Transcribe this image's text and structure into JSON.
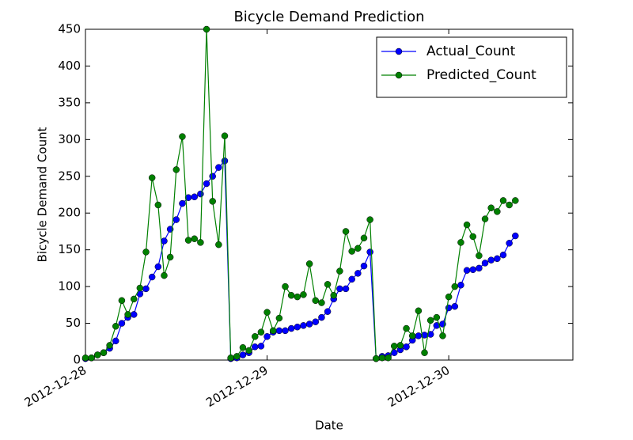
{
  "chart_data": {
    "type": "line",
    "title": "Bicycle Demand Prediction",
    "x_label": "Date",
    "y_label": "Bicycle Demand Count",
    "x": [
      0,
      1,
      2,
      3,
      4,
      5,
      6,
      7,
      8,
      9,
      10,
      11,
      12,
      13,
      14,
      15,
      16,
      17,
      18,
      19,
      20,
      21,
      22,
      23,
      24,
      25,
      26,
      27,
      28,
      29,
      30,
      31,
      32,
      33,
      34,
      35,
      36,
      37,
      38,
      39,
      40,
      41,
      42,
      43,
      44,
      45,
      46,
      47,
      48,
      49,
      50,
      51,
      52,
      53,
      54,
      55,
      56,
      57,
      58,
      59,
      60,
      61,
      62,
      63,
      64,
      65,
      66,
      67,
      68,
      69,
      70,
      71
    ],
    "series": [
      {
        "name": "Actual_Count",
        "color": "#0000ff",
        "values": [
          2,
          3,
          7,
          10,
          16,
          26,
          50,
          58,
          62,
          90,
          97,
          113,
          127,
          162,
          178,
          191,
          213,
          221,
          222,
          226,
          240,
          250,
          262,
          271,
          2,
          3,
          7,
          10,
          18,
          19,
          32,
          38,
          40,
          40,
          43,
          45,
          47,
          49,
          52,
          58,
          66,
          83,
          97,
          97,
          110,
          118,
          128,
          147,
          2,
          5,
          6,
          10,
          14,
          18,
          27,
          33,
          34,
          35,
          47,
          49,
          71,
          73,
          102,
          122,
          123,
          125,
          132,
          136,
          138,
          143,
          159,
          169
        ]
      },
      {
        "name": "Predicted_Count",
        "color": "#008000",
        "values": [
          3,
          3,
          7,
          10,
          20,
          46,
          81,
          62,
          83,
          98,
          147,
          248,
          211,
          115,
          140,
          259,
          304,
          163,
          165,
          160,
          450,
          216,
          157,
          305,
          3,
          5,
          17,
          13,
          32,
          38,
          65,
          40,
          57,
          100,
          88,
          86,
          89,
          131,
          81,
          78,
          103,
          88,
          121,
          175,
          148,
          152,
          166,
          191,
          2,
          3,
          3,
          19,
          20,
          43,
          33,
          67,
          10,
          54,
          58,
          33,
          86,
          100,
          160,
          184,
          168,
          142,
          192,
          207,
          202,
          217,
          211,
          217
        ]
      }
    ],
    "xlim": [
      0,
      80.5
    ],
    "xticks": [
      {
        "value": 0,
        "label": "2012-12-28"
      },
      {
        "value": 30,
        "label": "2012-12-29"
      },
      {
        "value": 60,
        "label": "2012-12-30"
      }
    ],
    "ylim": [
      0,
      450
    ],
    "yticks": [
      0,
      50,
      100,
      150,
      200,
      250,
      300,
      350,
      400,
      450
    ],
    "legend": "upper-right"
  }
}
